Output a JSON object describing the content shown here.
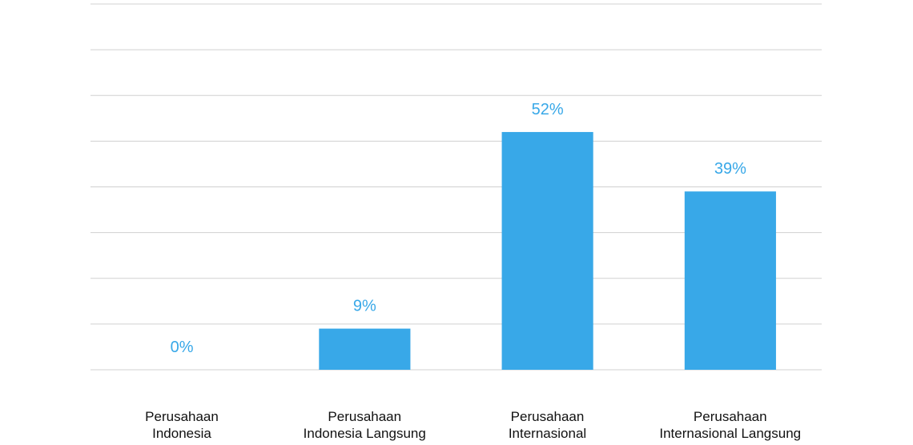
{
  "chart_data": {
    "type": "bar",
    "categories": [
      "Perusahaan\nIndonesia",
      "Perusahaan\nIndonesia Langsung",
      "Perusahaan\nInternasional",
      "Perusahaan\nInternasional Langsung"
    ],
    "values": [
      0,
      9,
      52,
      39
    ],
    "value_labels": [
      "0%",
      "9%",
      "52%",
      "39%"
    ],
    "color": "#38a8e8",
    "ylim": [
      0,
      80
    ],
    "yticks": [
      0,
      10,
      20,
      30,
      40,
      50,
      60,
      70,
      80
    ],
    "grid": true
  }
}
